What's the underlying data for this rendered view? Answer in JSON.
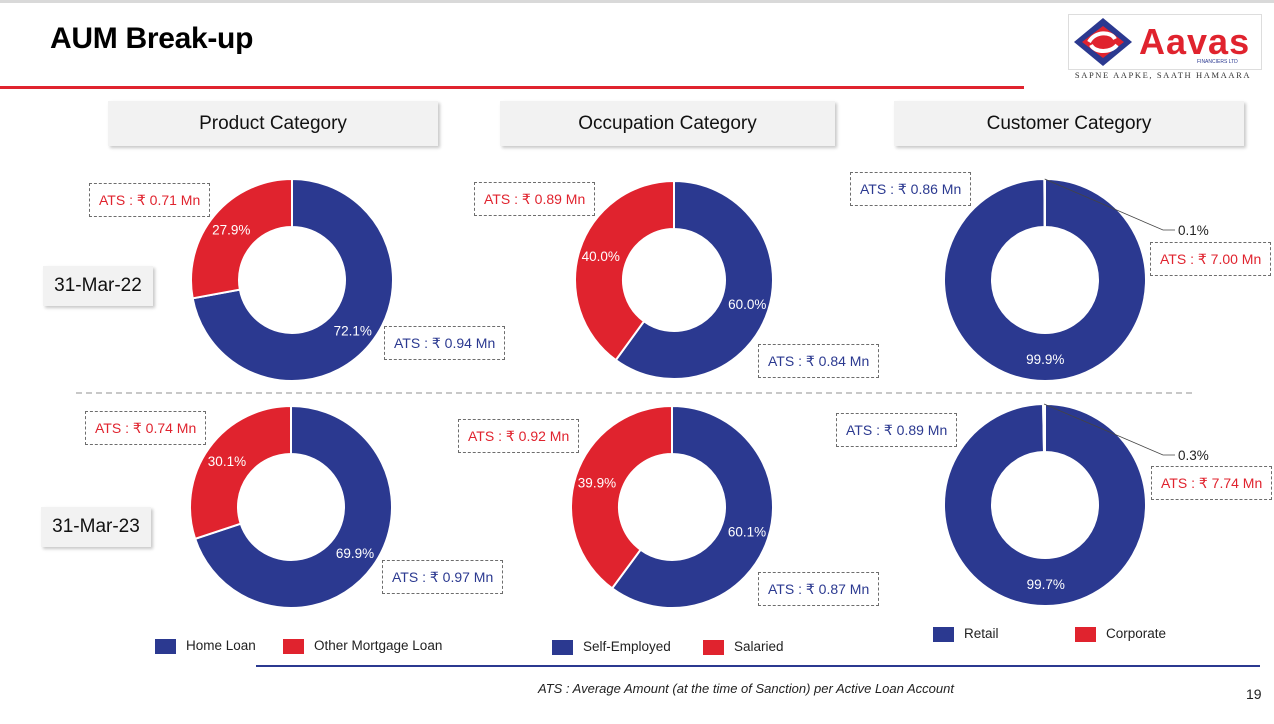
{
  "title": "AUM Break-up",
  "logo": {
    "name": "Aavas",
    "sub": "FINANCIERS LTD",
    "tagline": "SAPNE AAPKE, SAATH HAMAARA"
  },
  "categories": [
    "Product Category",
    "Occupation Category",
    "Customer Category"
  ],
  "dates": [
    "31-Mar-22",
    "31-Mar-23"
  ],
  "colors": {
    "blue": "#2b3990",
    "red": "#e0232e"
  },
  "chart_data": [
    {
      "type": "pie",
      "title": "Product Category",
      "date": "31-Mar-22",
      "donut": true,
      "labels": [
        "Home Loan",
        "Other Mortgage Loan"
      ],
      "values": [
        72.1,
        27.9
      ],
      "value_labels": [
        "72.1%",
        "27.9%"
      ],
      "ats": [
        "ATS : ₹ 0.94 Mn",
        "ATS : ₹ 0.71 Mn"
      ]
    },
    {
      "type": "pie",
      "title": "Occupation Category",
      "date": "31-Mar-22",
      "donut": true,
      "labels": [
        "Self-Employed",
        "Salaried"
      ],
      "values": [
        60.0,
        40.0
      ],
      "value_labels": [
        "60.0%",
        "40.0%"
      ],
      "ats": [
        "ATS : ₹ 0.84 Mn",
        "ATS : ₹ 0.89 Mn"
      ]
    },
    {
      "type": "pie",
      "title": "Customer Category",
      "date": "31-Mar-22",
      "donut": true,
      "labels": [
        "Retail",
        "Corporate"
      ],
      "values": [
        99.9,
        0.1
      ],
      "value_labels": [
        "99.9%",
        "0.1%"
      ],
      "ats": [
        "ATS : ₹ 0.86 Mn",
        "ATS : ₹ 7.00 Mn"
      ]
    },
    {
      "type": "pie",
      "title": "Product Category",
      "date": "31-Mar-23",
      "donut": true,
      "labels": [
        "Home Loan",
        "Other Mortgage Loan"
      ],
      "values": [
        69.9,
        30.1
      ],
      "value_labels": [
        "69.9%",
        "30.1%"
      ],
      "ats": [
        "ATS : ₹ 0.97 Mn",
        "ATS : ₹ 0.74 Mn"
      ]
    },
    {
      "type": "pie",
      "title": "Occupation Category",
      "date": "31-Mar-23",
      "donut": true,
      "labels": [
        "Self-Employed",
        "Salaried"
      ],
      "values": [
        60.1,
        39.9
      ],
      "value_labels": [
        "60.1%",
        "39.9%"
      ],
      "ats": [
        "ATS : ₹ 0.87 Mn",
        "ATS : ₹ 0.92 Mn"
      ]
    },
    {
      "type": "pie",
      "title": "Customer Category",
      "date": "31-Mar-23",
      "donut": true,
      "labels": [
        "Retail",
        "Corporate"
      ],
      "values": [
        99.7,
        0.3
      ],
      "value_labels": [
        "99.7%",
        "0.3%"
      ],
      "ats": [
        "ATS : ₹ 0.89 Mn",
        "ATS : ₹ 7.74 Mn"
      ]
    }
  ],
  "legends": [
    [
      "Home Loan",
      "Other Mortgage Loan"
    ],
    [
      "Self-Employed",
      "Salaried"
    ],
    [
      "Retail",
      "Corporate"
    ]
  ],
  "footnote": "ATS : Average Amount (at the time of Sanction) per Active Loan Account",
  "page_number": "19"
}
